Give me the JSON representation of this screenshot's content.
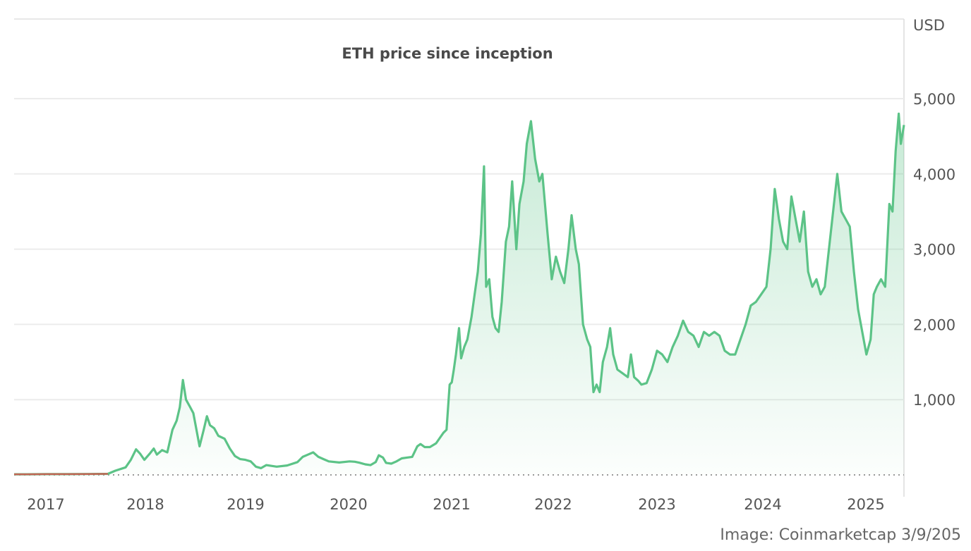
{
  "chart_data": {
    "type": "area",
    "title": "ETH price since inception",
    "unit_label": "USD",
    "credit": "Image: Coinmarketcap 3/9/205",
    "color": "#5cc387",
    "early_segment_color": "#e0504b",
    "grid": true,
    "ylim": [
      0,
      5000
    ],
    "yticks": [
      1000,
      2000,
      3000,
      4000,
      5000
    ],
    "ytick_labels": [
      "1,000",
      "2,000",
      "3,000",
      "4,000",
      "5,000"
    ],
    "xtick_labels": [
      "2017",
      "2018",
      "2019",
      "2020",
      "2021",
      "2022",
      "2023",
      "2024",
      "2025"
    ],
    "xlim": [
      2016.88,
      2025.42
    ],
    "series": [
      {
        "values": [
          [
            2016.88,
            8
          ],
          [
            2017.0,
            8
          ],
          [
            2017.2,
            10
          ],
          [
            2017.4,
            10
          ],
          [
            2017.6,
            12
          ],
          [
            2017.78,
            14
          ],
          [
            2017.85,
            55
          ],
          [
            2017.95,
            100
          ],
          [
            2018.0,
            200
          ],
          [
            2018.05,
            340
          ],
          [
            2018.09,
            280
          ],
          [
            2018.13,
            200
          ],
          [
            2018.18,
            280
          ],
          [
            2018.22,
            350
          ],
          [
            2018.25,
            270
          ],
          [
            2018.3,
            330
          ],
          [
            2018.35,
            300
          ],
          [
            2018.4,
            600
          ],
          [
            2018.44,
            720
          ],
          [
            2018.47,
            900
          ],
          [
            2018.5,
            1260
          ],
          [
            2018.53,
            1000
          ],
          [
            2018.57,
            900
          ],
          [
            2018.6,
            820
          ],
          [
            2018.63,
            600
          ],
          [
            2018.66,
            380
          ],
          [
            2018.7,
            600
          ],
          [
            2018.73,
            780
          ],
          [
            2018.76,
            660
          ],
          [
            2018.8,
            620
          ],
          [
            2018.84,
            520
          ],
          [
            2018.9,
            480
          ],
          [
            2018.95,
            350
          ],
          [
            2019.0,
            250
          ],
          [
            2019.05,
            210
          ],
          [
            2019.1,
            200
          ],
          [
            2019.15,
            180
          ],
          [
            2019.2,
            110
          ],
          [
            2019.25,
            90
          ],
          [
            2019.3,
            130
          ],
          [
            2019.35,
            120
          ],
          [
            2019.4,
            110
          ],
          [
            2019.5,
            125
          ],
          [
            2019.6,
            170
          ],
          [
            2019.65,
            240
          ],
          [
            2019.7,
            270
          ],
          [
            2019.75,
            300
          ],
          [
            2019.8,
            240
          ],
          [
            2019.85,
            210
          ],
          [
            2019.9,
            180
          ],
          [
            2020.0,
            165
          ],
          [
            2020.1,
            180
          ],
          [
            2020.15,
            175
          ],
          [
            2020.2,
            160
          ],
          [
            2020.25,
            140
          ],
          [
            2020.3,
            130
          ],
          [
            2020.35,
            170
          ],
          [
            2020.38,
            260
          ],
          [
            2020.42,
            230
          ],
          [
            2020.45,
            160
          ],
          [
            2020.5,
            150
          ],
          [
            2020.55,
            180
          ],
          [
            2020.6,
            220
          ],
          [
            2020.65,
            230
          ],
          [
            2020.7,
            240
          ],
          [
            2020.75,
            380
          ],
          [
            2020.78,
            410
          ],
          [
            2020.82,
            370
          ],
          [
            2020.87,
            370
          ],
          [
            2020.93,
            420
          ],
          [
            2020.97,
            500
          ],
          [
            2021.0,
            560
          ],
          [
            2021.03,
            600
          ],
          [
            2021.06,
            1200
          ],
          [
            2021.08,
            1230
          ],
          [
            2021.1,
            1400
          ],
          [
            2021.12,
            1600
          ],
          [
            2021.15,
            1950
          ],
          [
            2021.17,
            1550
          ],
          [
            2021.2,
            1700
          ],
          [
            2021.23,
            1800
          ],
          [
            2021.27,
            2100
          ],
          [
            2021.3,
            2400
          ],
          [
            2021.33,
            2700
          ],
          [
            2021.36,
            3200
          ],
          [
            2021.39,
            4100
          ],
          [
            2021.41,
            2500
          ],
          [
            2021.44,
            2600
          ],
          [
            2021.47,
            2100
          ],
          [
            2021.5,
            1950
          ],
          [
            2021.53,
            1900
          ],
          [
            2021.56,
            2300
          ],
          [
            2021.6,
            3100
          ],
          [
            2021.63,
            3300
          ],
          [
            2021.66,
            3900
          ],
          [
            2021.7,
            3000
          ],
          [
            2021.73,
            3600
          ],
          [
            2021.77,
            3900
          ],
          [
            2021.8,
            4400
          ],
          [
            2021.84,
            4700
          ],
          [
            2021.88,
            4200
          ],
          [
            2021.92,
            3900
          ],
          [
            2021.95,
            4000
          ],
          [
            2022.0,
            3200
          ],
          [
            2022.04,
            2600
          ],
          [
            2022.08,
            2900
          ],
          [
            2022.12,
            2700
          ],
          [
            2022.16,
            2550
          ],
          [
            2022.2,
            3000
          ],
          [
            2022.23,
            3450
          ],
          [
            2022.27,
            3000
          ],
          [
            2022.3,
            2800
          ],
          [
            2022.34,
            2000
          ],
          [
            2022.38,
            1800
          ],
          [
            2022.41,
            1700
          ],
          [
            2022.44,
            1100
          ],
          [
            2022.47,
            1200
          ],
          [
            2022.5,
            1100
          ],
          [
            2022.53,
            1500
          ],
          [
            2022.57,
            1700
          ],
          [
            2022.6,
            1950
          ],
          [
            2022.63,
            1600
          ],
          [
            2022.67,
            1400
          ],
          [
            2022.72,
            1350
          ],
          [
            2022.77,
            1300
          ],
          [
            2022.8,
            1600
          ],
          [
            2022.83,
            1300
          ],
          [
            2022.87,
            1250
          ],
          [
            2022.9,
            1200
          ],
          [
            2022.95,
            1220
          ],
          [
            2023.0,
            1400
          ],
          [
            2023.05,
            1650
          ],
          [
            2023.1,
            1600
          ],
          [
            2023.15,
            1500
          ],
          [
            2023.2,
            1700
          ],
          [
            2023.25,
            1850
          ],
          [
            2023.3,
            2050
          ],
          [
            2023.35,
            1900
          ],
          [
            2023.4,
            1850
          ],
          [
            2023.45,
            1700
          ],
          [
            2023.5,
            1900
          ],
          [
            2023.55,
            1850
          ],
          [
            2023.6,
            1900
          ],
          [
            2023.65,
            1850
          ],
          [
            2023.7,
            1650
          ],
          [
            2023.75,
            1600
          ],
          [
            2023.8,
            1600
          ],
          [
            2023.85,
            1800
          ],
          [
            2023.9,
            2000
          ],
          [
            2023.95,
            2250
          ],
          [
            2024.0,
            2300
          ],
          [
            2024.05,
            2400
          ],
          [
            2024.1,
            2500
          ],
          [
            2024.14,
            3000
          ],
          [
            2024.18,
            3800
          ],
          [
            2024.22,
            3400
          ],
          [
            2024.26,
            3100
          ],
          [
            2024.3,
            3000
          ],
          [
            2024.34,
            3700
          ],
          [
            2024.38,
            3400
          ],
          [
            2024.42,
            3100
          ],
          [
            2024.46,
            3500
          ],
          [
            2024.5,
            2700
          ],
          [
            2024.54,
            2500
          ],
          [
            2024.58,
            2600
          ],
          [
            2024.62,
            2400
          ],
          [
            2024.66,
            2500
          ],
          [
            2024.7,
            3000
          ],
          [
            2024.74,
            3500
          ],
          [
            2024.78,
            4000
          ],
          [
            2024.82,
            3500
          ],
          [
            2024.86,
            3400
          ],
          [
            2024.9,
            3300
          ],
          [
            2024.94,
            2700
          ],
          [
            2024.98,
            2200
          ],
          [
            2025.02,
            1900
          ],
          [
            2025.06,
            1600
          ],
          [
            2025.1,
            1800
          ],
          [
            2025.13,
            2400
          ],
          [
            2025.16,
            2500
          ],
          [
            2025.2,
            2600
          ],
          [
            2025.24,
            2500
          ],
          [
            2025.28,
            3600
          ],
          [
            2025.31,
            3500
          ],
          [
            2025.34,
            4300
          ],
          [
            2025.37,
            4800
          ],
          [
            2025.39,
            4400
          ],
          [
            2025.42,
            4650
          ]
        ]
      }
    ]
  }
}
